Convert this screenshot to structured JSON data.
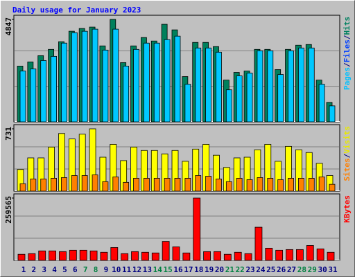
{
  "chart_data": {
    "type": "bar",
    "title": "Daily usage for January 2023",
    "title_color": "#0000ff",
    "categories": [
      "1",
      "2",
      "3",
      "4",
      "5",
      "6",
      "7",
      "8",
      "9",
      "10",
      "11",
      "12",
      "13",
      "14",
      "15",
      "16",
      "17",
      "18",
      "19",
      "20",
      "21",
      "22",
      "23",
      "24",
      "25",
      "26",
      "27",
      "28",
      "29",
      "30",
      "31"
    ],
    "category_color": "#000080",
    "highlight_indices": [
      6,
      7,
      13,
      14,
      20,
      21,
      27,
      28
    ],
    "highlight_color": "#008040",
    "panels": [
      {
        "ylim": [
          0,
          4847
        ],
        "yticks": [
          4847
        ],
        "legend": [
          {
            "text": "Pages",
            "color": "#00c0ff"
          },
          {
            "text": "/",
            "color": "#000080"
          },
          {
            "text": "Files",
            "color": "#0040ff"
          },
          {
            "text": "/",
            "color": "#000080"
          },
          {
            "text": "Hits",
            "color": "#008060"
          }
        ],
        "series": [
          {
            "name": "Hits",
            "color": "#00805c",
            "values": [
              2638,
              2836,
              3132,
              3429,
              3792,
              4287,
              4418,
              4484,
              3594,
              4847,
              2803,
              3594,
              3990,
              3825,
              4616,
              4352,
              2143,
              3759,
              3759,
              3561,
              1978,
              2341,
              2407,
              3429,
              3429,
              2473,
              3429,
              3627,
              3660,
              1978,
              923
            ]
          },
          {
            "name": "Pages",
            "color": "#00c8ff",
            "values": [
              2407,
              2506,
              2901,
              3099,
              3726,
              4220,
              4286,
              4385,
              3396,
              4385,
              2638,
              3429,
              3726,
              3726,
              3891,
              4055,
              1780,
              3495,
              3495,
              3297,
              1517,
              2176,
              2308,
              3363,
              3363,
              2242,
              3363,
              3495,
              3495,
              1780,
              758
            ]
          }
        ]
      },
      {
        "ylim": [
          0,
          731
        ],
        "yticks": [
          731
        ],
        "legend": [
          {
            "text": "Sites",
            "color": "#ff8000"
          },
          {
            "text": "/",
            "color": "#000080"
          },
          {
            "text": "Visits",
            "color": "#e8e800"
          }
        ],
        "series": [
          {
            "name": "Visits",
            "color": "#ffff00",
            "values": [
              254,
              390,
              390,
              517,
              676,
              612,
              668,
              731,
              398,
              549,
              358,
              517,
              477,
              477,
              437,
              477,
              350,
              493,
              549,
              421,
              278,
              390,
              398,
              485,
              549,
              350,
              525,
              485,
              453,
              326,
              183
            ]
          },
          {
            "name": "Sites",
            "color": "#ff8000",
            "values": [
              87,
              143,
              143,
              151,
              159,
              183,
              183,
              191,
              111,
              167,
              103,
              151,
              151,
              151,
              151,
              151,
              151,
              183,
              175,
              143,
              111,
              151,
              135,
              159,
              151,
              135,
              151,
              151,
              151,
              167,
              80
            ]
          }
        ]
      },
      {
        "ylim": [
          0,
          259565
        ],
        "yticks": [
          259565
        ],
        "legend": [
          {
            "text": "KBytes",
            "color": "#ff0000"
          }
        ],
        "series": [
          {
            "name": "KBytes",
            "color": "#ff0000",
            "values": [
              25391,
              28212,
              39500,
              39500,
              36672,
              42318,
              42318,
              39500,
              33852,
              53600,
              28212,
              36672,
              33852,
              31031,
              78990,
              56420,
              31031,
              259565,
              36672,
              36672,
              25391,
              33852,
              28212,
              138229,
              50780,
              42318,
              45136,
              45136,
              62062,
              47957,
              33852
            ]
          }
        ]
      }
    ]
  }
}
